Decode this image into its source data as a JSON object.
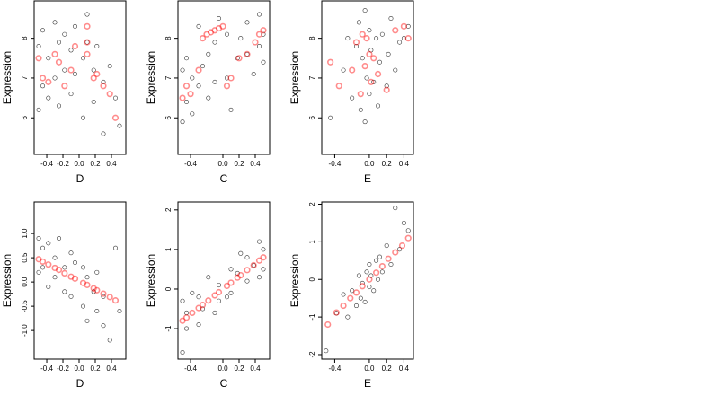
{
  "chart_data": [
    {
      "type": "scatter",
      "x_label": "D",
      "y_label": "Expression",
      "xlim": [
        -0.556,
        0.578
      ],
      "ylim": [
        5.08,
        8.94
      ],
      "xticks": [
        -0.4,
        -0.2,
        {
          "value": 0,
          "label": "0.0"
        },
        0.2,
        0.4
      ],
      "yticks": [
        6,
        7,
        8
      ],
      "series": [
        {
          "color": "#000000",
          "x": [
            -0.5,
            -0.5,
            -0.45,
            -0.45,
            -0.38,
            -0.38,
            -0.3,
            -0.3,
            -0.25,
            -0.25,
            -0.18,
            -0.18,
            -0.1,
            -0.1,
            -0.05,
            -0.05,
            0.05,
            0.05,
            0.1,
            0.1,
            0.18,
            0.18,
            0.22,
            0.3,
            0.3,
            0.38,
            0.45,
            0.5
          ],
          "values": [
            7.8,
            6.2,
            8.2,
            6.8,
            7.5,
            6.5,
            8.4,
            7.0,
            7.9,
            6.3,
            7.2,
            8.1,
            6.6,
            7.7,
            8.3,
            7.1,
            6.0,
            7.5,
            8.6,
            7.9,
            7.2,
            6.4,
            7.8,
            6.9,
            5.6,
            7.3,
            6.5,
            5.8
          ]
        },
        {
          "color": "#ff0000",
          "x": [
            -0.5,
            -0.45,
            -0.38,
            -0.3,
            -0.25,
            -0.18,
            -0.1,
            -0.05,
            0.1,
            0.1,
            0.1,
            0.18,
            0.22,
            0.3,
            0.38,
            0.45
          ],
          "values": [
            7.5,
            7.0,
            6.9,
            7.6,
            7.4,
            6.8,
            7.2,
            7.8,
            8.3,
            7.9,
            7.6,
            7.0,
            7.1,
            6.8,
            6.6,
            6.0
          ]
        }
      ]
    },
    {
      "type": "scatter",
      "x_label": "C",
      "y_label": "Expression",
      "xlim": [
        -0.556,
        0.578
      ],
      "ylim": [
        5.08,
        8.94
      ],
      "xticks": [
        -0.4,
        {
          "value": 0,
          "label": "0.0"
        },
        0.2,
        0.4
      ],
      "yticks": [
        6,
        7,
        8
      ],
      "series": [
        {
          "color": "#000000",
          "x": [
            -0.5,
            -0.5,
            -0.45,
            -0.45,
            -0.38,
            -0.38,
            -0.3,
            -0.3,
            -0.25,
            -0.18,
            -0.18,
            -0.1,
            -0.1,
            -0.05,
            0.05,
            0.05,
            0.1,
            0.18,
            0.22,
            0.3,
            0.3,
            0.38,
            0.45,
            0.45,
            0.5,
            0.5
          ],
          "values": [
            5.9,
            7.2,
            6.4,
            7.5,
            6.1,
            7.0,
            6.8,
            8.3,
            7.3,
            6.5,
            7.6,
            7.9,
            6.9,
            8.5,
            7.0,
            8.1,
            6.2,
            7.5,
            8.0,
            7.6,
            8.4,
            7.1,
            7.8,
            8.6,
            8.1,
            7.4
          ]
        },
        {
          "color": "#ff0000",
          "x": [
            -0.5,
            -0.45,
            -0.4,
            -0.3,
            -0.25,
            -0.2,
            -0.15,
            -0.1,
            -0.05,
            0.0,
            0.05,
            0.1,
            0.2,
            0.3,
            0.4,
            0.45,
            0.5
          ],
          "values": [
            6.5,
            6.8,
            6.6,
            7.2,
            8.0,
            8.1,
            8.15,
            8.2,
            8.25,
            8.3,
            6.8,
            7.0,
            7.5,
            7.6,
            7.9,
            8.1,
            8.2
          ]
        }
      ]
    },
    {
      "type": "scatter",
      "x_label": "E",
      "y_label": "Expression",
      "xlim": [
        -0.55,
        0.51
      ],
      "ylim": [
        5.08,
        8.94
      ],
      "xticks": [
        -0.4,
        {
          "value": 0,
          "label": "0.0"
        },
        0.2,
        0.4
      ],
      "yticks": [
        6,
        7,
        8
      ],
      "series": [
        {
          "color": "#000000",
          "x": [
            -0.45,
            -0.3,
            -0.25,
            -0.2,
            -0.15,
            -0.12,
            -0.1,
            -0.08,
            -0.05,
            -0.05,
            -0.03,
            0.0,
            0.0,
            0.02,
            0.05,
            0.08,
            0.1,
            0.12,
            0.15,
            0.2,
            0.22,
            0.25,
            0.3,
            0.35,
            0.4,
            0.45
          ],
          "values": [
            6.0,
            7.2,
            8.0,
            6.5,
            7.8,
            8.4,
            6.2,
            7.5,
            8.7,
            5.9,
            7.0,
            8.2,
            6.6,
            7.7,
            6.9,
            8.0,
            6.3,
            7.4,
            8.1,
            6.8,
            7.6,
            8.5,
            7.2,
            7.9,
            8.0,
            8.3
          ]
        },
        {
          "color": "#ff0000",
          "x": [
            -0.45,
            -0.35,
            -0.2,
            -0.15,
            -0.1,
            -0.08,
            -0.05,
            -0.03,
            0.0,
            0.02,
            0.05,
            0.1,
            0.2,
            0.3,
            0.4,
            0.45
          ],
          "values": [
            7.4,
            6.8,
            7.2,
            7.9,
            6.6,
            8.1,
            7.3,
            8.0,
            7.6,
            6.9,
            7.5,
            7.1,
            6.7,
            8.2,
            8.3,
            8.0
          ]
        }
      ]
    },
    {
      "type": "scatter",
      "x_label": "D",
      "y_label": "Expression",
      "xlim": [
        -0.556,
        0.578
      ],
      "ylim": [
        -1.59,
        1.65
      ],
      "xticks": [
        -0.4,
        -0.2,
        {
          "value": 0,
          "label": "0.0"
        },
        0.2,
        0.4
      ],
      "yticks": [
        {
          "value": -1,
          "label": "-1.0"
        },
        -0.5,
        {
          "value": 0,
          "label": "0.0"
        },
        0.5,
        {
          "value": 1,
          "label": "1.0"
        }
      ],
      "series": [
        {
          "color": "#000000",
          "x": [
            -0.5,
            -0.5,
            -0.45,
            -0.45,
            -0.38,
            -0.38,
            -0.3,
            -0.3,
            -0.25,
            -0.18,
            -0.18,
            -0.1,
            -0.1,
            -0.05,
            0.05,
            0.05,
            0.1,
            0.1,
            0.18,
            0.22,
            0.22,
            0.3,
            0.3,
            0.38,
            0.45,
            0.5
          ],
          "values": [
            0.9,
            0.2,
            0.7,
            0.3,
            0.8,
            -0.1,
            0.5,
            0.1,
            0.9,
            0.3,
            -0.2,
            0.6,
            -0.3,
            0.4,
            -0.5,
            0.3,
            -0.8,
            0.1,
            -0.2,
            -0.6,
            0.2,
            -0.9,
            -0.3,
            -1.2,
            0.7,
            -0.6
          ]
        },
        {
          "color": "#ff0000",
          "x": [
            -0.5,
            -0.45,
            -0.38,
            -0.3,
            -0.25,
            -0.18,
            -0.1,
            -0.05,
            0.05,
            0.1,
            0.18,
            0.22,
            0.3,
            0.38,
            0.45
          ],
          "values": [
            0.47,
            0.42,
            0.36,
            0.29,
            0.25,
            0.18,
            0.11,
            0.07,
            -0.02,
            -0.06,
            -0.13,
            -0.17,
            -0.24,
            -0.31,
            -0.38
          ]
        }
      ]
    },
    {
      "type": "scatter",
      "x_label": "C",
      "y_label": "Expression",
      "xlim": [
        -0.556,
        0.578
      ],
      "ylim": [
        -1.77,
        2.2
      ],
      "xticks": [
        -0.4,
        {
          "value": 0,
          "label": "0.0"
        },
        0.2,
        0.4
      ],
      "yticks": [
        -1,
        0,
        1,
        2
      ],
      "series": [
        {
          "color": "#000000",
          "x": [
            -0.5,
            -0.5,
            -0.45,
            -0.45,
            -0.38,
            -0.3,
            -0.3,
            -0.25,
            -0.18,
            -0.1,
            -0.05,
            -0.05,
            0.05,
            0.1,
            0.1,
            0.18,
            0.22,
            0.3,
            0.3,
            0.38,
            0.45,
            0.45,
            0.5,
            0.5
          ],
          "values": [
            -1.6,
            -0.3,
            -1.0,
            -0.6,
            -0.1,
            -0.9,
            -0.2,
            -0.5,
            0.3,
            -0.6,
            0.1,
            -0.3,
            -0.2,
            0.5,
            -0.1,
            0.4,
            0.9,
            0.2,
            0.8,
            0.6,
            1.2,
            0.3,
            1.0,
            0.5
          ]
        },
        {
          "color": "#ff0000",
          "x": [
            -0.5,
            -0.45,
            -0.38,
            -0.3,
            -0.25,
            -0.18,
            -0.1,
            -0.05,
            0.05,
            0.1,
            0.18,
            0.22,
            0.3,
            0.38,
            0.45,
            0.5
          ],
          "values": [
            -0.8,
            -0.72,
            -0.6,
            -0.48,
            -0.4,
            -0.29,
            -0.16,
            -0.08,
            0.08,
            0.16,
            0.29,
            0.35,
            0.48,
            0.6,
            0.72,
            0.8
          ]
        }
      ]
    },
    {
      "type": "scatter",
      "x_label": "E",
      "y_label": "Expression",
      "xlim": [
        -0.55,
        0.51
      ],
      "ylim": [
        -2.12,
        2.06
      ],
      "xticks": [
        -0.4,
        {
          "value": 0,
          "label": "0.0"
        },
        0.2,
        0.4
      ],
      "yticks": [
        -2,
        -1,
        0,
        1,
        2
      ],
      "series": [
        {
          "color": "#000000",
          "x": [
            -0.5,
            -0.38,
            -0.3,
            -0.25,
            -0.2,
            -0.15,
            -0.12,
            -0.1,
            -0.08,
            -0.05,
            -0.03,
            0.0,
            0.0,
            0.02,
            0.05,
            0.08,
            0.1,
            0.12,
            0.15,
            0.2,
            0.25,
            0.3,
            0.35,
            0.4,
            0.45
          ],
          "values": [
            -1.9,
            -0.9,
            -0.4,
            -1.0,
            -0.3,
            -0.7,
            0.1,
            -0.5,
            -0.1,
            -0.6,
            0.2,
            -0.2,
            0.4,
            0.1,
            -0.3,
            0.5,
            0.0,
            0.6,
            0.2,
            0.9,
            0.4,
            1.9,
            0.8,
            1.5,
            1.3
          ]
        },
        {
          "color": "#ff0000",
          "x": [
            -0.48,
            -0.38,
            -0.3,
            -0.22,
            -0.15,
            -0.08,
            0.0,
            0.08,
            0.15,
            0.22,
            0.3,
            0.38,
            0.45
          ],
          "values": [
            -1.2,
            -0.88,
            -0.7,
            -0.5,
            -0.35,
            -0.18,
            0.0,
            0.18,
            0.35,
            0.55,
            0.72,
            0.9,
            1.1
          ]
        }
      ]
    }
  ]
}
